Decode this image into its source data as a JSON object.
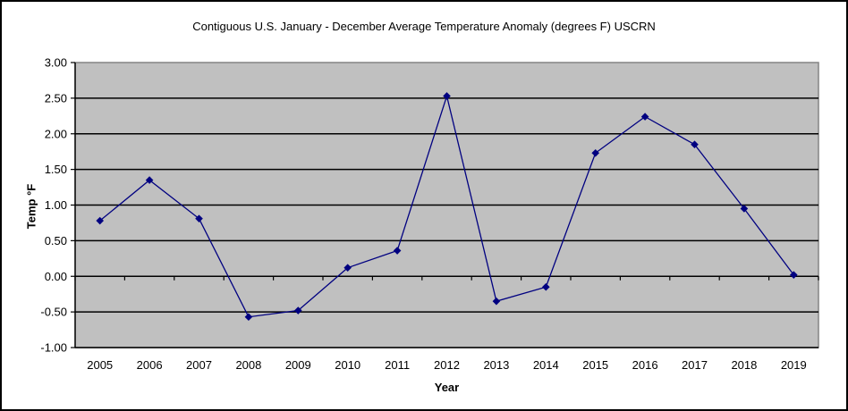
{
  "chart_data": {
    "type": "line",
    "title": "Contiguous U.S. January - December Average Temperature Anomaly (degrees F) USCRN",
    "xlabel": "Year",
    "ylabel": "Temp °F",
    "categories": [
      "2005",
      "2006",
      "2007",
      "2008",
      "2009",
      "2010",
      "2011",
      "2012",
      "2013",
      "2014",
      "2015",
      "2016",
      "2017",
      "2018",
      "2019"
    ],
    "values": [
      0.78,
      1.35,
      0.81,
      -0.57,
      -0.48,
      0.12,
      0.36,
      2.53,
      -0.35,
      -0.15,
      1.73,
      2.24,
      1.85,
      0.95,
      0.02
    ],
    "ylim": [
      -1.0,
      3.0
    ],
    "ytick_step": 0.5,
    "ytick_labels": [
      "3.00",
      "2.50",
      "2.00",
      "1.50",
      "1.00",
      "0.50",
      "0.00",
      "-0.50",
      "-1.00"
    ],
    "grid": true,
    "legend": "none",
    "marker": "diamond",
    "colors": {
      "line": "#000080",
      "marker": "#000080",
      "plot_bg": "#C0C0C0",
      "plot_border": "#848484",
      "gridline": "#000000",
      "axis": "#000000",
      "text": "#000000",
      "chart_bg": "#FFFFFF",
      "outer_border": "#000000"
    }
  }
}
